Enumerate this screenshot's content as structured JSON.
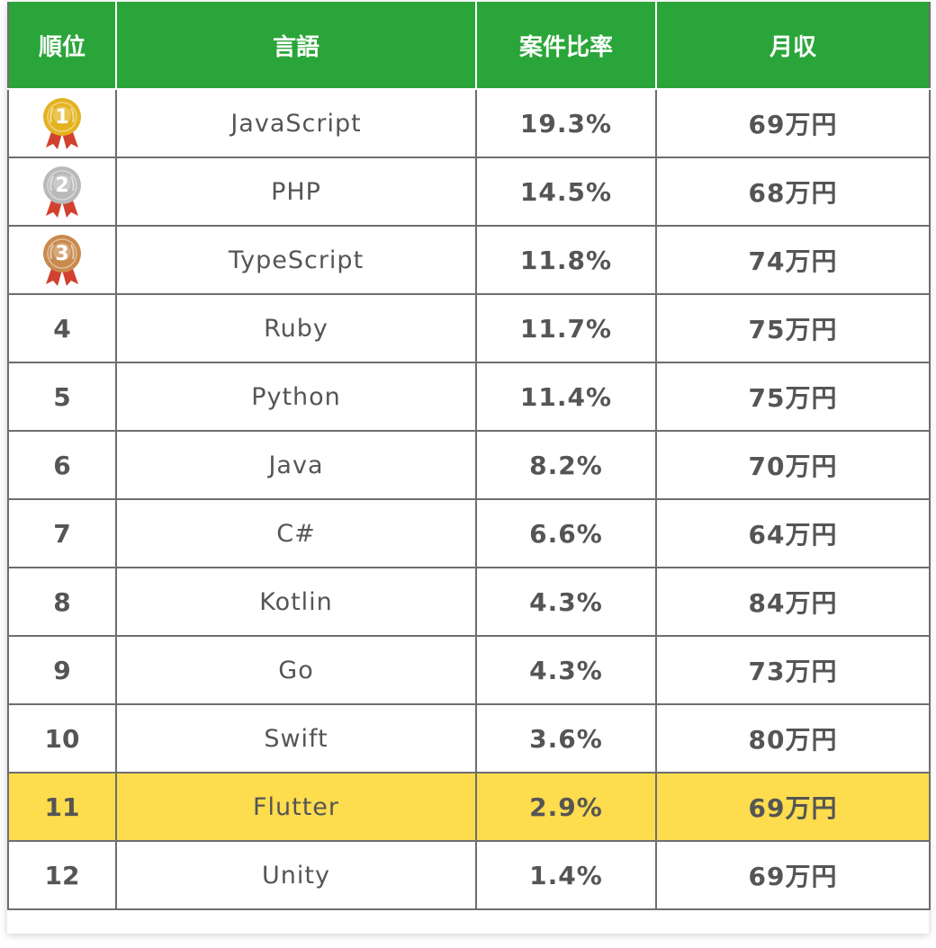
{
  "table": {
    "headers": [
      "順位",
      "言語",
      "案件比率",
      "月収"
    ],
    "rows": [
      {
        "rank": "1",
        "medal": "gold",
        "language": "JavaScript",
        "ratio": "19.3%",
        "income": "69万円"
      },
      {
        "rank": "2",
        "medal": "silver",
        "language": "PHP",
        "ratio": "14.5%",
        "income": "68万円"
      },
      {
        "rank": "3",
        "medal": "bronze",
        "language": "TypeScript",
        "ratio": "11.8%",
        "income": "74万円"
      },
      {
        "rank": "4",
        "medal": null,
        "language": "Ruby",
        "ratio": "11.7%",
        "income": "75万円"
      },
      {
        "rank": "5",
        "medal": null,
        "language": "Python",
        "ratio": "11.4%",
        "income": "75万円"
      },
      {
        "rank": "6",
        "medal": null,
        "language": "Java",
        "ratio": "8.2%",
        "income": "70万円"
      },
      {
        "rank": "7",
        "medal": null,
        "language": "C#",
        "ratio": "6.6%",
        "income": "64万円"
      },
      {
        "rank": "8",
        "medal": null,
        "language": "Kotlin",
        "ratio": "4.3%",
        "income": "84万円"
      },
      {
        "rank": "9",
        "medal": null,
        "language": "Go",
        "ratio": "4.3%",
        "income": "73万円"
      },
      {
        "rank": "10",
        "medal": null,
        "language": "Swift",
        "ratio": "3.6%",
        "income": "80万円"
      },
      {
        "rank": "11",
        "medal": null,
        "language": "Flutter",
        "ratio": "2.9%",
        "income": "69万円",
        "highlight": true
      },
      {
        "rank": "12",
        "medal": null,
        "language": "Unity",
        "ratio": "1.4%",
        "income": "69万円"
      }
    ]
  },
  "colors": {
    "header_bg": "#2aa53a",
    "highlight_bg": "#fddc4e",
    "gold": "#e3b21e",
    "silver": "#b9b9b9",
    "bronze": "#c98a4e",
    "ribbon": "#d2412f"
  },
  "icons": {
    "gold": "gold-medal-icon",
    "silver": "silver-medal-icon",
    "bronze": "bronze-medal-icon"
  }
}
